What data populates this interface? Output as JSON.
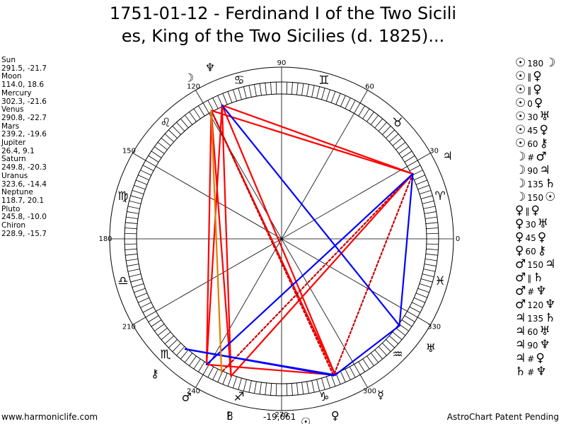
{
  "title": {
    "line1": "1751-01-12 - Ferdinand I of the Two Sicili",
    "line2": "es, King of the Two Sicilies (d. 1825)..."
  },
  "planets": [
    {
      "name": "Sun",
      "coords": "291.5, -21.7"
    },
    {
      "name": "Moon",
      "coords": "114.0, 18.6"
    },
    {
      "name": "Mercury",
      "coords": "302.3, -21.6"
    },
    {
      "name": "Venus",
      "coords": "290.8, -22.7"
    },
    {
      "name": "Mars",
      "coords": "239.2, -19.6"
    },
    {
      "name": "Jupiter",
      "coords": "26.4, 9.1"
    },
    {
      "name": "Saturn",
      "coords": "249.8, -20.3"
    },
    {
      "name": "Uranus",
      "coords": "323.6, -14.4"
    },
    {
      "name": "Neptune",
      "coords": "118.7, 20.1"
    },
    {
      "name": "Pluto",
      "coords": "245.8, -10.0"
    },
    {
      "name": "Chiron",
      "coords": "228.9, -15.7"
    }
  ],
  "aspects": [
    {
      "p1": "☉",
      "deg": "180",
      "p2": "☽"
    },
    {
      "p1": "☉",
      "deg": "∥",
      "p2": "♀"
    },
    {
      "p1": "☉",
      "deg": "∥",
      "p2": "♀"
    },
    {
      "p1": "☉",
      "deg": "0",
      "p2": "♀"
    },
    {
      "p1": "☉",
      "deg": "30",
      "p2": "♅"
    },
    {
      "p1": "☉",
      "deg": "45",
      "p2": "♀"
    },
    {
      "p1": "☉",
      "deg": "60",
      "p2": "⚷"
    },
    {
      "p1": "☽",
      "deg": "#",
      "p2": "♂"
    },
    {
      "p1": "☽",
      "deg": "90",
      "p2": "♃"
    },
    {
      "p1": "☽",
      "deg": "135",
      "p2": "♄"
    },
    {
      "p1": "☽",
      "deg": "150",
      "p2": "☉"
    },
    {
      "p1": "♀",
      "deg": "∥",
      "p2": "♀"
    },
    {
      "p1": "♀",
      "deg": "30",
      "p2": "♅"
    },
    {
      "p1": "♀",
      "deg": "45",
      "p2": "♀"
    },
    {
      "p1": "♀",
      "deg": "60",
      "p2": "⚷"
    },
    {
      "p1": "♂",
      "deg": "150",
      "p2": "♃"
    },
    {
      "p1": "♂",
      "deg": "∥",
      "p2": "♄"
    },
    {
      "p1": "♂",
      "deg": "#",
      "p2": "♆"
    },
    {
      "p1": "♂",
      "deg": "120",
      "p2": "♆"
    },
    {
      "p1": "♃",
      "deg": "135",
      "p2": "♄"
    },
    {
      "p1": "♃",
      "deg": "60",
      "p2": "♅"
    },
    {
      "p1": "♃",
      "deg": "90",
      "p2": "♆"
    },
    {
      "p1": "♃",
      "deg": "#",
      "p2": "♀"
    },
    {
      "p1": "♄",
      "deg": "#",
      "p2": "♆"
    }
  ],
  "wheel": {
    "degree_labels": [
      {
        "label": "90",
        "deg": 90
      },
      {
        "label": "60",
        "deg": 60
      },
      {
        "label": "30",
        "deg": 30
      },
      {
        "label": "0",
        "deg": 0
      },
      {
        "label": "330",
        "deg": 330
      },
      {
        "label": "300",
        "deg": 300
      },
      {
        "label": "270",
        "deg": 270
      },
      {
        "label": "240",
        "deg": 240
      },
      {
        "label": "210",
        "deg": 210
      },
      {
        "label": "180",
        "deg": 180
      },
      {
        "label": "150",
        "deg": 150
      },
      {
        "label": "120",
        "deg": 120
      }
    ],
    "signs": [
      {
        "glyph": "♈",
        "deg": 15
      },
      {
        "glyph": "♉",
        "deg": 45
      },
      {
        "glyph": "♊",
        "deg": 75
      },
      {
        "glyph": "♋",
        "deg": 105
      },
      {
        "glyph": "♌",
        "deg": 135
      },
      {
        "glyph": "♍",
        "deg": 165
      },
      {
        "glyph": "♎",
        "deg": 195
      },
      {
        "glyph": "♏",
        "deg": 225
      },
      {
        "glyph": "♐",
        "deg": 255
      },
      {
        "glyph": "♑",
        "deg": 285
      },
      {
        "glyph": "♒",
        "deg": 315
      },
      {
        "glyph": "♓",
        "deg": 345
      }
    ],
    "bodies": [
      {
        "name": "Sun",
        "glyph": "☉",
        "lon": 291.5
      },
      {
        "name": "Moon",
        "glyph": "☽",
        "lon": 114.0
      },
      {
        "name": "Mercury",
        "glyph": "☿",
        "lon": 302.3
      },
      {
        "name": "Venus",
        "glyph": "♀",
        "lon": 290.8
      },
      {
        "name": "Mars",
        "glyph": "♂",
        "lon": 239.2
      },
      {
        "name": "Jupiter",
        "glyph": "♃",
        "lon": 26.4
      },
      {
        "name": "Saturn",
        "glyph": "♄",
        "lon": 249.8
      },
      {
        "name": "Uranus",
        "glyph": "♅",
        "lon": 323.6
      },
      {
        "name": "Neptune",
        "glyph": "♆",
        "lon": 118.7
      },
      {
        "name": "Pluto",
        "glyph": "♇",
        "lon": 245.8
      },
      {
        "name": "Chiron",
        "glyph": "⚷",
        "lon": 228.9
      }
    ],
    "aspect_lines": [
      {
        "a": "Moon",
        "b": "Jupiter",
        "color": "#ff0000",
        "style": "solid"
      },
      {
        "a": "Neptune",
        "b": "Jupiter",
        "color": "#ff0000",
        "style": "solid"
      },
      {
        "a": "Moon",
        "b": "Mars",
        "color": "#ff0000",
        "style": "solid"
      },
      {
        "a": "Moon",
        "b": "Saturn",
        "color": "#ff0000",
        "style": "solid"
      },
      {
        "a": "Neptune",
        "b": "Mars",
        "color": "#ff0000",
        "style": "solid"
      },
      {
        "a": "Neptune",
        "b": "Saturn",
        "color": "#ff0000",
        "style": "solid"
      },
      {
        "a": "Neptune",
        "b": "Sun",
        "color": "#ff0000",
        "style": "solid"
      },
      {
        "a": "Jupiter",
        "b": "Saturn",
        "color": "#ff0000",
        "style": "solid"
      },
      {
        "a": "Moon",
        "b": "Sun",
        "color": "#ff0000",
        "style": "solid"
      },
      {
        "a": "Mars",
        "b": "Sun",
        "color": "#ff0000",
        "style": "solid"
      },
      {
        "a": "Jupiter",
        "b": "Pluto",
        "color": "#cc0000",
        "style": "dotted"
      },
      {
        "a": "Jupiter",
        "b": "Venus",
        "color": "#cc0000",
        "style": "dotted"
      },
      {
        "a": "Neptune",
        "b": "Venus",
        "color": "#cc0000",
        "style": "dotted"
      },
      {
        "a": "Moon",
        "b": "Uranus",
        "color": "#0000ff",
        "style": "solid"
      },
      {
        "a": "Jupiter",
        "b": "Mars",
        "color": "#0000ff",
        "style": "solid"
      },
      {
        "a": "Jupiter",
        "b": "Uranus",
        "color": "#0000ff",
        "style": "solid"
      },
      {
        "a": "Uranus",
        "b": "Sun",
        "color": "#0000ff",
        "style": "solid"
      },
      {
        "a": "Chiron",
        "b": "Sun",
        "color": "#0000ff",
        "style": "solid"
      },
      {
        "a": "Chiron",
        "b": "Venus",
        "color": "#0000ff",
        "style": "solid"
      },
      {
        "a": "Neptune",
        "b": "Pluto",
        "color": "#e08000",
        "style": "solid"
      }
    ]
  },
  "footer": {
    "left": "www.harmoniclife.com",
    "right": "AstroChart Patent Pending",
    "value": "-19,661"
  },
  "colors": {
    "hard": "#ff0000",
    "soft": "#0000ff",
    "minor": "#cc0000",
    "conjunction": "#e08000",
    "wheel": "#000000"
  }
}
